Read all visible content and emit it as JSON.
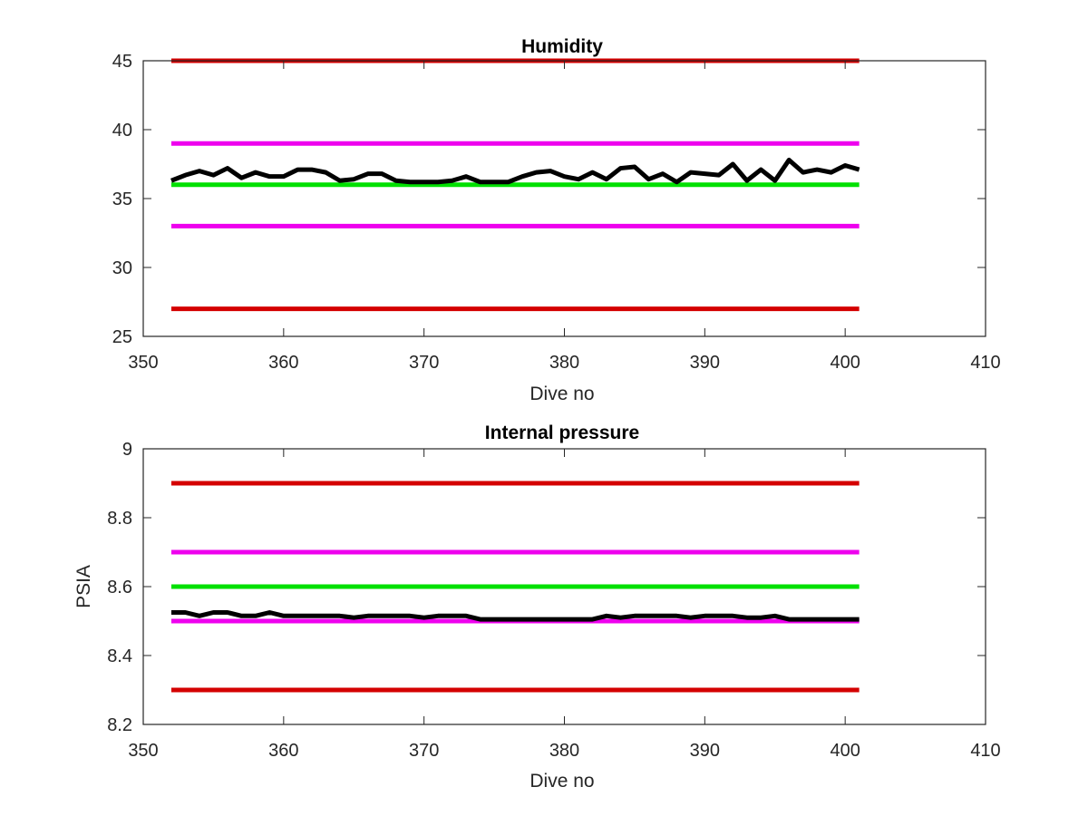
{
  "chart_data": [
    {
      "type": "line",
      "title": "Humidity",
      "xlabel": "Dive no",
      "ylabel": "",
      "xlim": [
        350,
        410
      ],
      "ylim": [
        25,
        45
      ],
      "xticks": [
        350,
        360,
        370,
        380,
        390,
        400,
        410
      ],
      "yticks": [
        25,
        30,
        35,
        40,
        45
      ],
      "grid": false,
      "reference_lines": [
        {
          "y": 45,
          "x": [
            352,
            401
          ],
          "color": "#d40000"
        },
        {
          "y": 39,
          "x": [
            352,
            401
          ],
          "color": "#ee00ee"
        },
        {
          "y": 36,
          "x": [
            352,
            401
          ],
          "color": "#00e000"
        },
        {
          "y": 33,
          "x": [
            352,
            401
          ],
          "color": "#ee00ee"
        },
        {
          "y": 27,
          "x": [
            352,
            401
          ],
          "color": "#d40000"
        }
      ],
      "series": [
        {
          "color": "#000000",
          "x": [
            352,
            353,
            354,
            355,
            356,
            357,
            358,
            359,
            360,
            361,
            362,
            363,
            364,
            365,
            366,
            367,
            368,
            369,
            370,
            371,
            372,
            373,
            374,
            375,
            376,
            377,
            378,
            379,
            380,
            381,
            382,
            383,
            384,
            385,
            386,
            387,
            388,
            389,
            390,
            391,
            392,
            393,
            394,
            395,
            396,
            397,
            398,
            399,
            400,
            401
          ],
          "values": [
            36.3,
            36.7,
            37.0,
            36.7,
            37.2,
            36.5,
            36.9,
            36.6,
            36.6,
            37.1,
            37.1,
            36.9,
            36.3,
            36.4,
            36.8,
            36.8,
            36.3,
            36.2,
            36.2,
            36.2,
            36.3,
            36.6,
            36.2,
            36.2,
            36.2,
            36.6,
            36.9,
            37.0,
            36.6,
            36.4,
            36.9,
            36.4,
            37.2,
            37.3,
            36.4,
            36.8,
            36.2,
            36.9,
            36.8,
            36.7,
            37.5,
            36.3,
            37.1,
            36.3,
            37.8,
            36.9,
            37.1,
            36.9,
            37.4,
            37.1
          ]
        }
      ]
    },
    {
      "type": "line",
      "title": "Internal pressure",
      "xlabel": "Dive no",
      "ylabel": "PSIA",
      "xlim": [
        350,
        410
      ],
      "ylim": [
        8.2,
        9
      ],
      "xticks": [
        350,
        360,
        370,
        380,
        390,
        400,
        410
      ],
      "yticks": [
        8.2,
        8.4,
        8.6,
        8.8,
        9
      ],
      "grid": false,
      "reference_lines": [
        {
          "y": 8.9,
          "x": [
            352,
            401
          ],
          "color": "#d40000"
        },
        {
          "y": 8.7,
          "x": [
            352,
            401
          ],
          "color": "#ee00ee"
        },
        {
          "y": 8.6,
          "x": [
            352,
            401
          ],
          "color": "#00e000"
        },
        {
          "y": 8.5,
          "x": [
            352,
            401
          ],
          "color": "#ee00ee"
        },
        {
          "y": 8.3,
          "x": [
            352,
            401
          ],
          "color": "#d40000"
        }
      ],
      "series": [
        {
          "color": "#000000",
          "x": [
            352,
            353,
            354,
            355,
            356,
            357,
            358,
            359,
            360,
            361,
            362,
            363,
            364,
            365,
            366,
            367,
            368,
            369,
            370,
            371,
            372,
            373,
            374,
            375,
            376,
            377,
            378,
            379,
            380,
            381,
            382,
            383,
            384,
            385,
            386,
            387,
            388,
            389,
            390,
            391,
            392,
            393,
            394,
            395,
            396,
            397,
            398,
            399,
            400,
            401
          ],
          "values": [
            8.525,
            8.525,
            8.515,
            8.525,
            8.525,
            8.515,
            8.515,
            8.525,
            8.515,
            8.515,
            8.515,
            8.515,
            8.515,
            8.51,
            8.515,
            8.515,
            8.515,
            8.515,
            8.51,
            8.515,
            8.515,
            8.515,
            8.505,
            8.505,
            8.505,
            8.505,
            8.505,
            8.505,
            8.505,
            8.505,
            8.505,
            8.515,
            8.51,
            8.515,
            8.515,
            8.515,
            8.515,
            8.51,
            8.515,
            8.515,
            8.515,
            8.51,
            8.51,
            8.515,
            8.505,
            8.505,
            8.505,
            8.505,
            8.505,
            8.505
          ]
        }
      ]
    }
  ]
}
